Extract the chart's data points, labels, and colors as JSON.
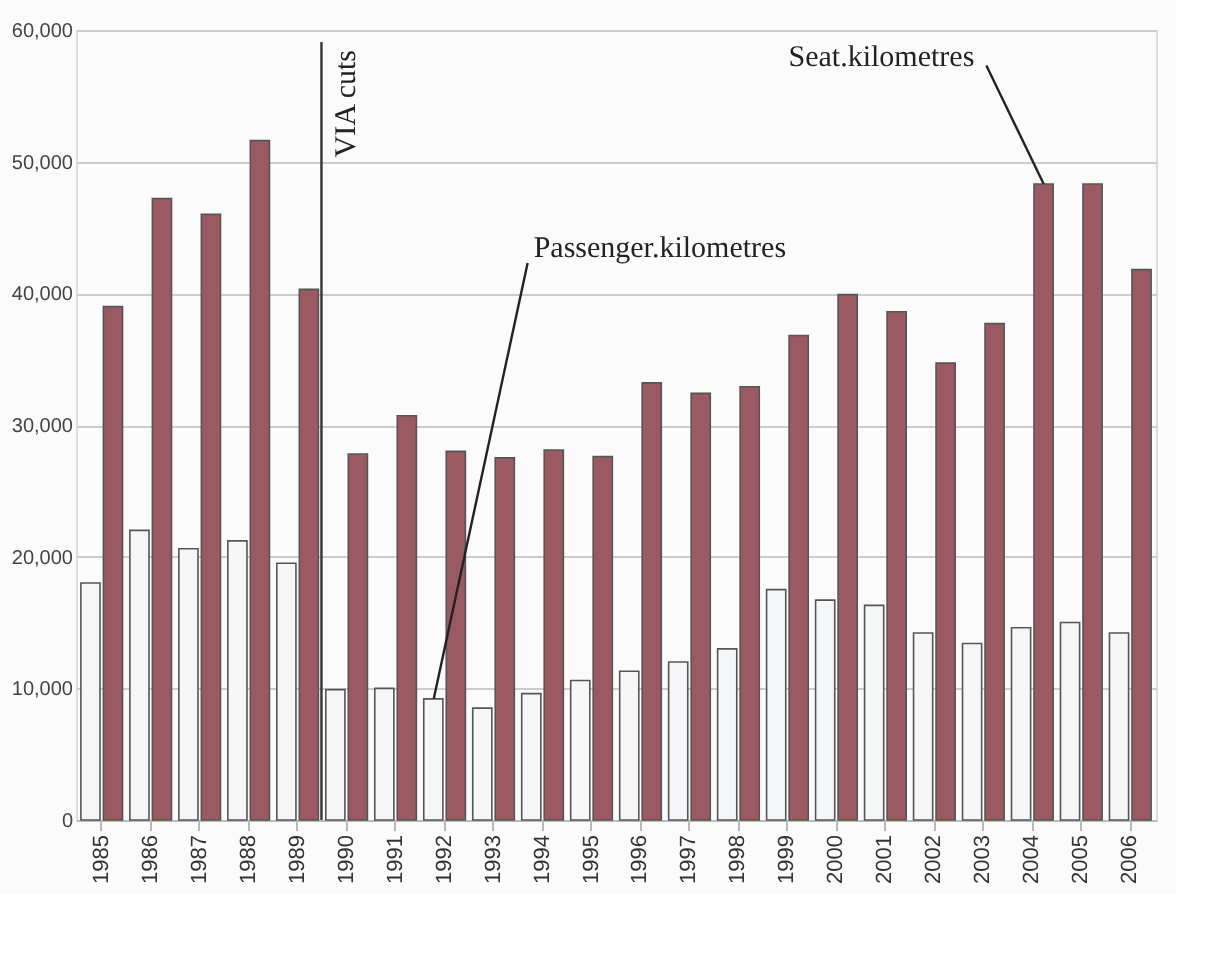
{
  "chart_data": {
    "type": "bar",
    "categories": [
      "1985",
      "1986",
      "1987",
      "1988",
      "1989",
      "1990",
      "1991",
      "1992",
      "1993",
      "1994",
      "1995",
      "1996",
      "1997",
      "1998",
      "1999",
      "2000",
      "2001",
      "2002",
      "2003",
      "2004",
      "2005",
      "2006"
    ],
    "series": [
      {
        "name": "Passenger.kilometres",
        "color": "#f4f6f8",
        "values": [
          18000,
          22000,
          20600,
          21200,
          19500,
          9900,
          10000,
          9200,
          8500,
          9600,
          10600,
          11300,
          12000,
          13000,
          17500,
          16700,
          16300,
          14200,
          13400,
          14600,
          15000,
          14200
        ]
      },
      {
        "name": "Seat.kilometres",
        "color": "#9b5a62",
        "values": [
          39000,
          47200,
          46000,
          51600,
          40300,
          27800,
          30700,
          28000,
          27500,
          28100,
          27600,
          33200,
          32400,
          32900,
          36800,
          39900,
          38600,
          34700,
          37700,
          48300,
          48300,
          41800
        ]
      }
    ],
    "ylim": [
      0,
      60000
    ],
    "yticks": [
      0,
      {
        "value": 10000,
        "label": "10,000"
      },
      {
        "value": 20000,
        "label": "20,000"
      },
      {
        "value": 30000,
        "label": "30,000"
      },
      {
        "value": 40000,
        "label": "40,000"
      },
      {
        "value": 50000,
        "label": "50,000"
      },
      {
        "value": 60000,
        "label": "60,000"
      }
    ],
    "grid": "y",
    "legend": false,
    "ref_lines": [
      {
        "axis": "x",
        "value": "1990",
        "label": "VIA cuts",
        "color": "#333333"
      }
    ]
  }
}
